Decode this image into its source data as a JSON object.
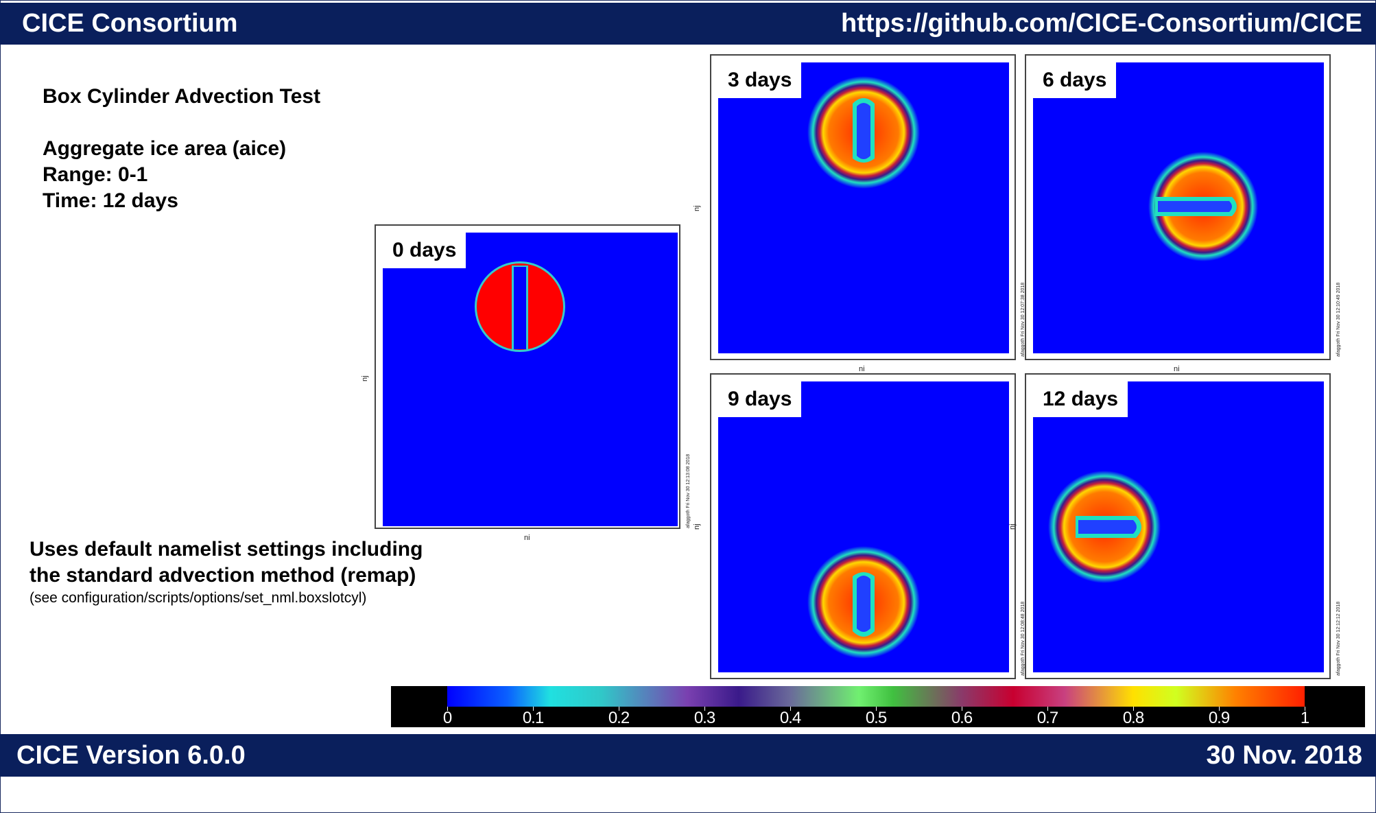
{
  "header": {
    "title": "CICE Consortium",
    "url": "https://github.com/CICE-Consortium/CICE"
  },
  "footer": {
    "version": "CICE Version 6.0.0",
    "date": "30 Nov. 2018"
  },
  "info": {
    "title": "Box Cylinder Advection Test",
    "variable": "Aggregate ice area (aice)",
    "range": "Range: 0-1",
    "time": "Time: 12 days"
  },
  "description": {
    "line1": "Uses default namelist settings including",
    "line2": "the standard advection method (remap)",
    "note": "(see configuration/scripts/options/set_nml.boxslotcyl)"
  },
  "axes": {
    "x": "ni",
    "y": "nj"
  },
  "panels": [
    {
      "label": "0 days",
      "stamp": "afaggoth Fri Nov 30 12:13:08 2018"
    },
    {
      "label": "3 days",
      "stamp": "afaggoth Fri Nov 30 12:07:38 2018"
    },
    {
      "label": "6 days",
      "stamp": "afaggoth Fri Nov 30 12:10:49 2018"
    },
    {
      "label": "9 days",
      "stamp": "afaggoth Fri Nov 30 12:08:48 2018"
    },
    {
      "label": "12 days",
      "stamp": "afaggoth Fri Nov 30 12:12:12 2018"
    }
  ],
  "colorbar": {
    "ticks": [
      "0",
      "0.1",
      "0.2",
      "0.3",
      "0.4",
      "0.5",
      "0.6",
      "0.7",
      "0.8",
      "0.9",
      "1"
    ]
  },
  "colors": {
    "header": "#0a1f5c",
    "field": "#0000ff",
    "ice": "#ff0000"
  }
}
